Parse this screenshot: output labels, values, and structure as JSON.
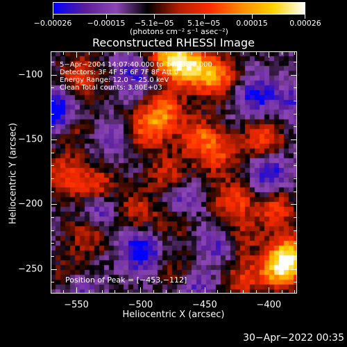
{
  "chart_data": {
    "type": "heatmap",
    "title": "Reconstructed RHESSI Image",
    "xlabel": "Heliocentric X (arcsec)",
    "ylabel": "Heliocentric Y (arcsec)",
    "xlim": [
      -570,
      -378
    ],
    "ylim": [
      -269,
      -82
    ],
    "x_ticks": [
      {
        "value": -550,
        "label": "−550"
      },
      {
        "value": -500,
        "label": "−500"
      },
      {
        "value": -450,
        "label": "−450"
      },
      {
        "value": -400,
        "label": "−400"
      }
    ],
    "y_ticks": [
      {
        "value": -100,
        "label": "−100"
      },
      {
        "value": -150,
        "label": "−150"
      },
      {
        "value": -200,
        "label": "−200"
      },
      {
        "value": -250,
        "label": "−250"
      }
    ],
    "colorbar": {
      "range": [
        -0.00026,
        0.00026
      ],
      "tick_labels": [
        {
          "value": -0.00026,
          "label": "−0.00026"
        },
        {
          "value": -0.00015,
          "label": "−0.00015"
        },
        {
          "value": -5.1e-05,
          "label": "−5.1e−05"
        },
        {
          "value": 5.1e-05,
          "label": "5.1e−05"
        },
        {
          "value": 0.00015,
          "label": "0.00015"
        },
        {
          "value": 0.00026,
          "label": "0.00026"
        }
      ],
      "unit_label": "(photons cm⁻² s⁻¹ asec⁻²)",
      "colormap": [
        "#0000ff",
        "#5a1e9a",
        "#8c46b4",
        "#000000",
        "#b41e00",
        "#ff2d00",
        "#ff8c00",
        "#ffd200",
        "#ffffff"
      ]
    },
    "hot_regions": [
      {
        "x": -478,
        "y": -87,
        "value": 0.00026
      },
      {
        "x": -460,
        "y": -95,
        "value": 0.00024
      },
      {
        "x": -440,
        "y": -102,
        "value": 0.0002
      },
      {
        "x": -482,
        "y": -128,
        "value": 0.00018
      },
      {
        "x": -495,
        "y": -143,
        "value": 0.00017
      },
      {
        "x": -455,
        "y": -148,
        "value": 0.00016
      },
      {
        "x": -440,
        "y": -162,
        "value": 0.00014
      },
      {
        "x": -545,
        "y": -102,
        "value": 0.00015
      },
      {
        "x": -555,
        "y": -140,
        "value": 0.00012
      },
      {
        "x": -560,
        "y": -178,
        "value": 0.00014
      },
      {
        "x": -535,
        "y": -188,
        "value": 0.00016
      },
      {
        "x": -523,
        "y": -160,
        "value": 0.00011
      },
      {
        "x": -540,
        "y": -222,
        "value": 0.00013
      },
      {
        "x": -505,
        "y": -205,
        "value": 0.00012
      },
      {
        "x": -478,
        "y": -178,
        "value": 0.00013
      },
      {
        "x": -475,
        "y": -210,
        "value": 0.00011
      },
      {
        "x": -428,
        "y": -198,
        "value": 0.00016
      },
      {
        "x": -422,
        "y": -225,
        "value": 0.0001
      },
      {
        "x": -405,
        "y": -150,
        "value": 0.00017
      },
      {
        "x": -395,
        "y": -205,
        "value": 0.00015
      },
      {
        "x": -392,
        "y": -250,
        "value": 0.00023
      },
      {
        "x": -382,
        "y": -240,
        "value": 0.00025
      },
      {
        "x": -420,
        "y": -258,
        "value": 0.00012
      },
      {
        "x": -470,
        "y": -252,
        "value": 0.0001
      },
      {
        "x": -555,
        "y": -255,
        "value": 9e-05
      }
    ],
    "cold_regions": [
      {
        "x": -565,
        "y": -130,
        "value": -0.00026
      },
      {
        "x": -522,
        "y": -155,
        "value": -0.00018
      },
      {
        "x": -532,
        "y": -205,
        "value": -0.00017
      },
      {
        "x": -500,
        "y": -236,
        "value": -0.0002
      },
      {
        "x": -505,
        "y": -100,
        "value": -0.00014
      },
      {
        "x": -470,
        "y": -197,
        "value": -0.00015
      },
      {
        "x": -458,
        "y": -262,
        "value": -0.00013
      },
      {
        "x": -410,
        "y": -116,
        "value": -0.00016
      },
      {
        "x": -400,
        "y": -175,
        "value": -0.00015
      },
      {
        "x": -548,
        "y": -265,
        "value": -0.00012
      },
      {
        "x": -440,
        "y": -230,
        "value": -0.00012
      },
      {
        "x": -380,
        "y": -120,
        "value": -0.00011
      }
    ]
  },
  "annotations": {
    "time": "5−Apr−2004 14:07:40.000 to 14:13:40.000",
    "detectors": "Detectors: 3F 4F 5F 6F 7F 8F  Att 0",
    "energy": "Energy Range: 12.0 − 25.0 keV",
    "clean": "Clean     Total counts: 3.80E+03",
    "peak": "Position of Peak = [−453,−112]"
  },
  "footer": {
    "timestamp": "30−Apr−2022 00:35"
  }
}
